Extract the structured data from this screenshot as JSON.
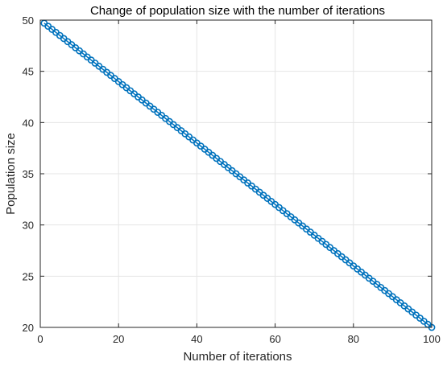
{
  "chart_data": {
    "type": "line",
    "title": "Change of population size with the number of iterations",
    "xlabel": "Number of iterations",
    "ylabel": "Population size",
    "xlim": [
      0,
      100
    ],
    "ylim": [
      20,
      50
    ],
    "xticks": [
      0,
      20,
      40,
      60,
      80,
      100
    ],
    "yticks": [
      20,
      25,
      30,
      35,
      40,
      45,
      50
    ],
    "grid": true,
    "legend": "none",
    "marker": "circle",
    "series_color": "#0072BD",
    "series": [
      {
        "x_start": 1,
        "x_end": 100,
        "y_start": 49.7,
        "y_end": 20,
        "num_points": 100
      }
    ]
  }
}
